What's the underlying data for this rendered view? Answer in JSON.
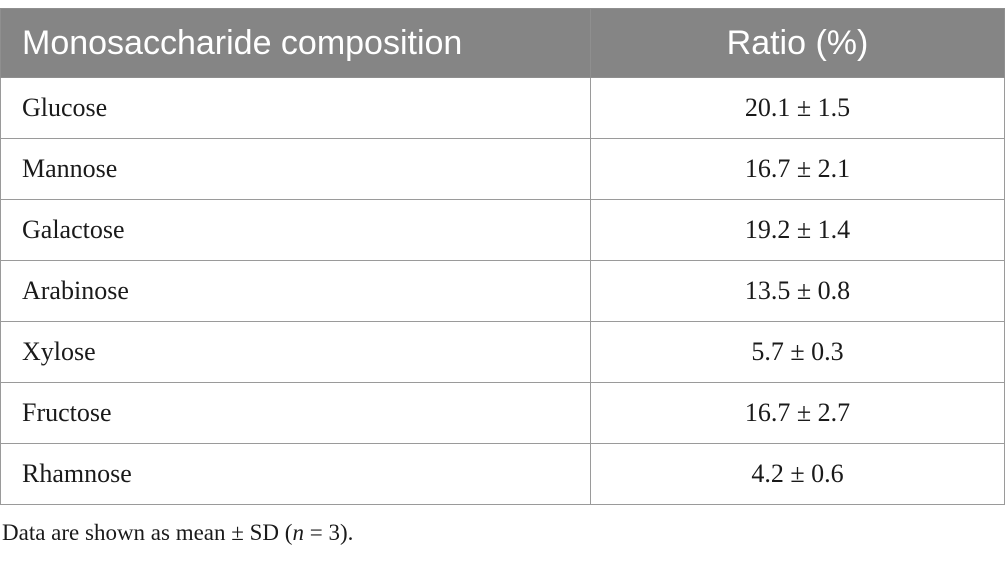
{
  "table": {
    "headers": [
      "Monosaccharide composition",
      "Ratio (%)"
    ],
    "rows": [
      {
        "name": "Glucose",
        "ratio": "20.1 ± 1.5"
      },
      {
        "name": "Mannose",
        "ratio": "16.7 ± 2.1"
      },
      {
        "name": "Galactose",
        "ratio": "19.2 ± 1.4"
      },
      {
        "name": "Arabinose",
        "ratio": "13.5 ± 0.8"
      },
      {
        "name": "Xylose",
        "ratio": "5.7 ± 0.3"
      },
      {
        "name": "Fructose",
        "ratio": "16.7 ± 2.7"
      },
      {
        "name": "Rhamnose",
        "ratio": "4.2 ± 0.6"
      }
    ]
  },
  "footnote": {
    "prefix": "Data are shown as mean ± SD (",
    "italic": "n",
    "suffix": " = 3)."
  }
}
